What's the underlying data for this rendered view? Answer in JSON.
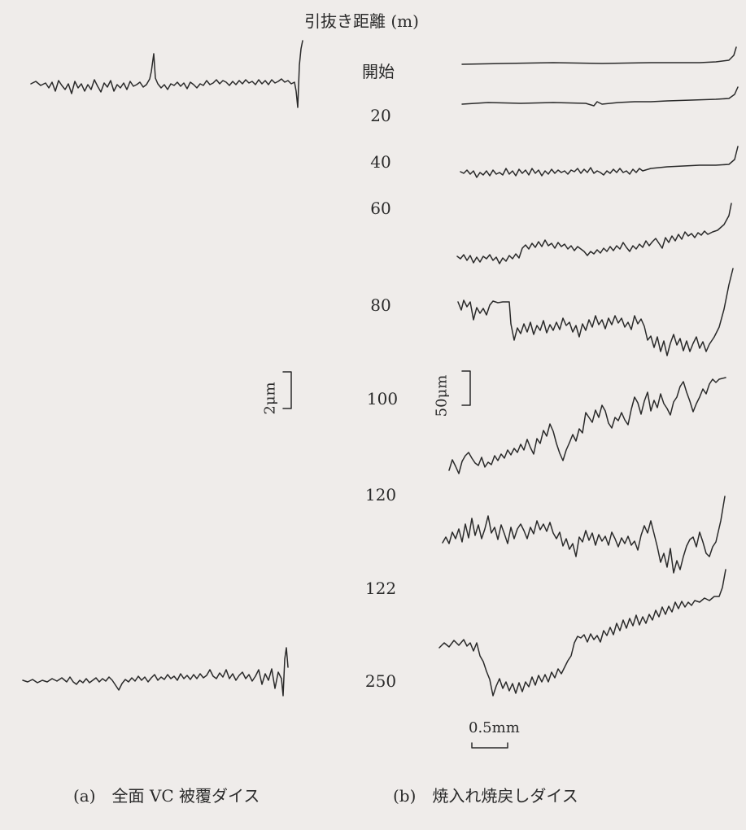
{
  "header": "引抜き距離 (m)",
  "distances": [
    "開始",
    "20",
    "40",
    "60",
    "80",
    "100",
    "120",
    "122",
    "250"
  ],
  "scale_left": "2μm",
  "scale_right": "50μm",
  "scale_bottom": "0.5mm",
  "caption_a": "(a)　全面 VC 被覆ダイス",
  "caption_b": "(b)　焼入れ焼戻しダイス",
  "line_color": "#2a2a2a",
  "background": "#efecea"
}
